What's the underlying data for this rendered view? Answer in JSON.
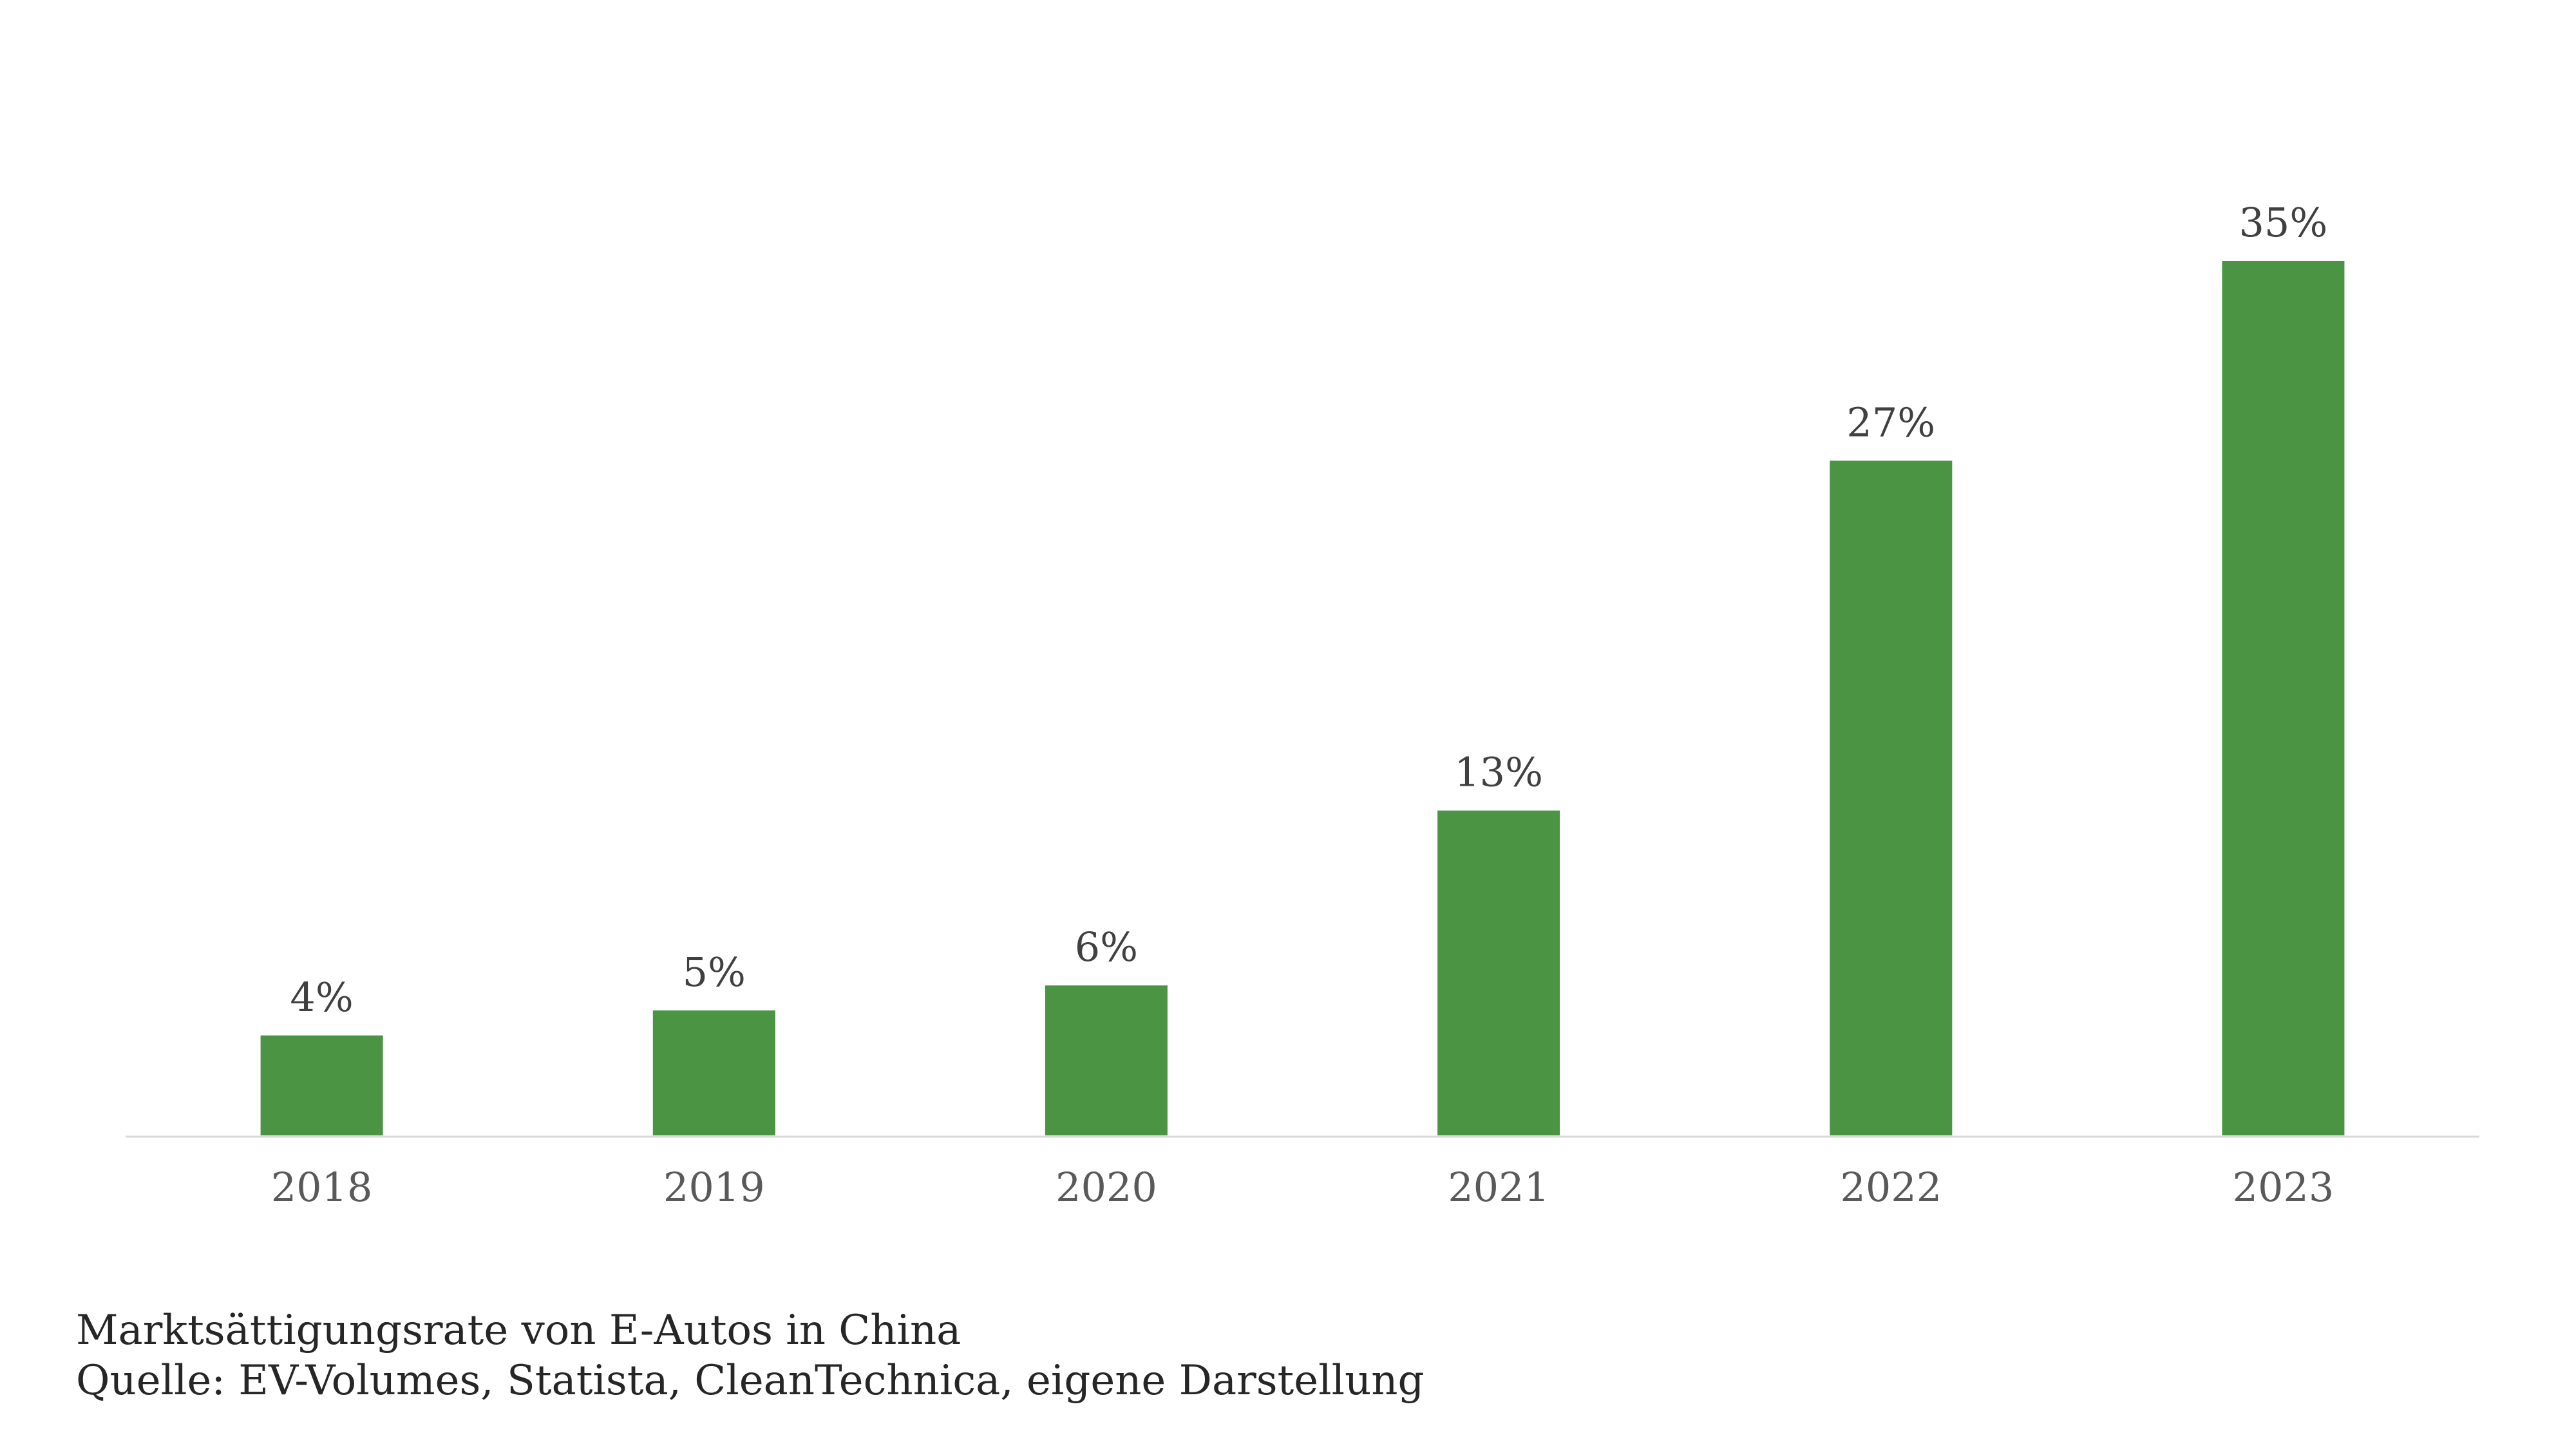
{
  "chart_data": {
    "type": "bar",
    "categories": [
      "2018",
      "2019",
      "2020",
      "2021",
      "2022",
      "2023"
    ],
    "values": [
      4,
      5,
      6,
      13,
      27,
      35
    ],
    "data_labels": [
      "4%",
      "5%",
      "6%",
      "13%",
      "27%",
      "35%"
    ],
    "ylim": [
      0,
      35
    ],
    "unit": "%",
    "grid": false,
    "legend": "none",
    "bar_color": "#4a9443",
    "axis_color": "#d9d9d9",
    "label_color": "#404040",
    "tick_color": "#595959"
  },
  "caption": {
    "line1": "Marktsättigungsrate von E-Autos in China",
    "line2": "Quelle: EV-Volumes, Statista, CleanTechnica, eigene Darstellung"
  }
}
